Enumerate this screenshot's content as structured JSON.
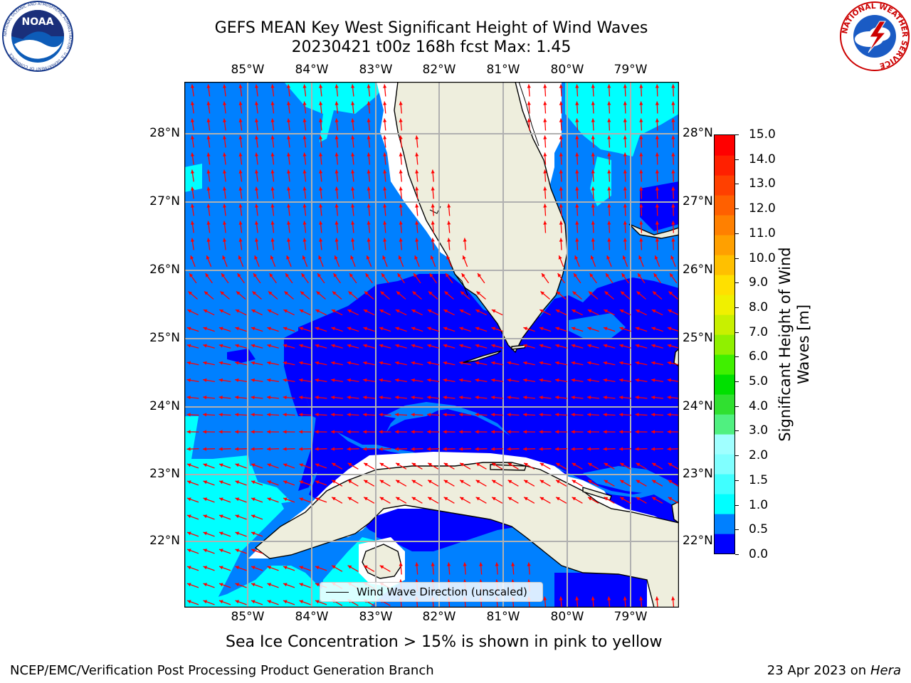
{
  "title": {
    "line1": "GEFS MEAN Key West Significant Height of Wind Waves",
    "line2": "20230421 t00z 168h fcst   Max: 1.45"
  },
  "logos": {
    "left": "NOAA",
    "left_ring_text": "NATIONAL OCEANIC AND ATMOSPHERIC ADMINISTRATION · U.S. DEPARTMENT OF COMMERCE",
    "right_ring_text": "NATIONAL WEATHER SERVICE"
  },
  "map": {
    "lon_labels": [
      "85°W",
      "84°W",
      "83°W",
      "82°W",
      "81°W",
      "80°W",
      "79°W"
    ],
    "lat_labels": [
      "28°N",
      "27°N",
      "26°N",
      "25°N",
      "24°N",
      "23°N",
      "22°N"
    ],
    "legend_label": "Wind Wave Direction (unscaled)",
    "colors": {
      "wave_0_0.5": "#0000ff",
      "wave_0.5_1.0": "#0080ff",
      "wave_1.0_1.5": "#00ffff",
      "land": "#eeeedd",
      "arrow": "#ff0000",
      "grid": "#b0b0b0"
    }
  },
  "colorbar": {
    "label": "Significant Height of Wind Waves [m]",
    "ticks": [
      "15.0",
      "14.0",
      "13.0",
      "12.0",
      "11.0",
      "10.0",
      "9.0",
      "8.0",
      "7.0",
      "6.0",
      "5.0",
      "4.0",
      "3.0",
      "2.0",
      "1.5",
      "1.0",
      "0.5",
      "0.0"
    ],
    "colors": [
      "#0000ff",
      "#0080ff",
      "#00ffff",
      "#40ffff",
      "#80ffff",
      "#a0ffff",
      "#50f080",
      "#30e030",
      "#00e000",
      "#40f000",
      "#90f000",
      "#c8f000",
      "#f0f000",
      "#ffe000",
      "#ffc000",
      "#ffa000",
      "#ff8000",
      "#ff6000",
      "#ff4000",
      "#ff2000",
      "#ff0000"
    ]
  },
  "notes": {
    "sea_ice": "Sea Ice Concentration > 15% is shown in pink to yellow",
    "footer_left": "NCEP/EMC/Verification Post Processing Product Generation Branch",
    "footer_date": "23 Apr 2023 on ",
    "footer_machine": "Hera"
  }
}
